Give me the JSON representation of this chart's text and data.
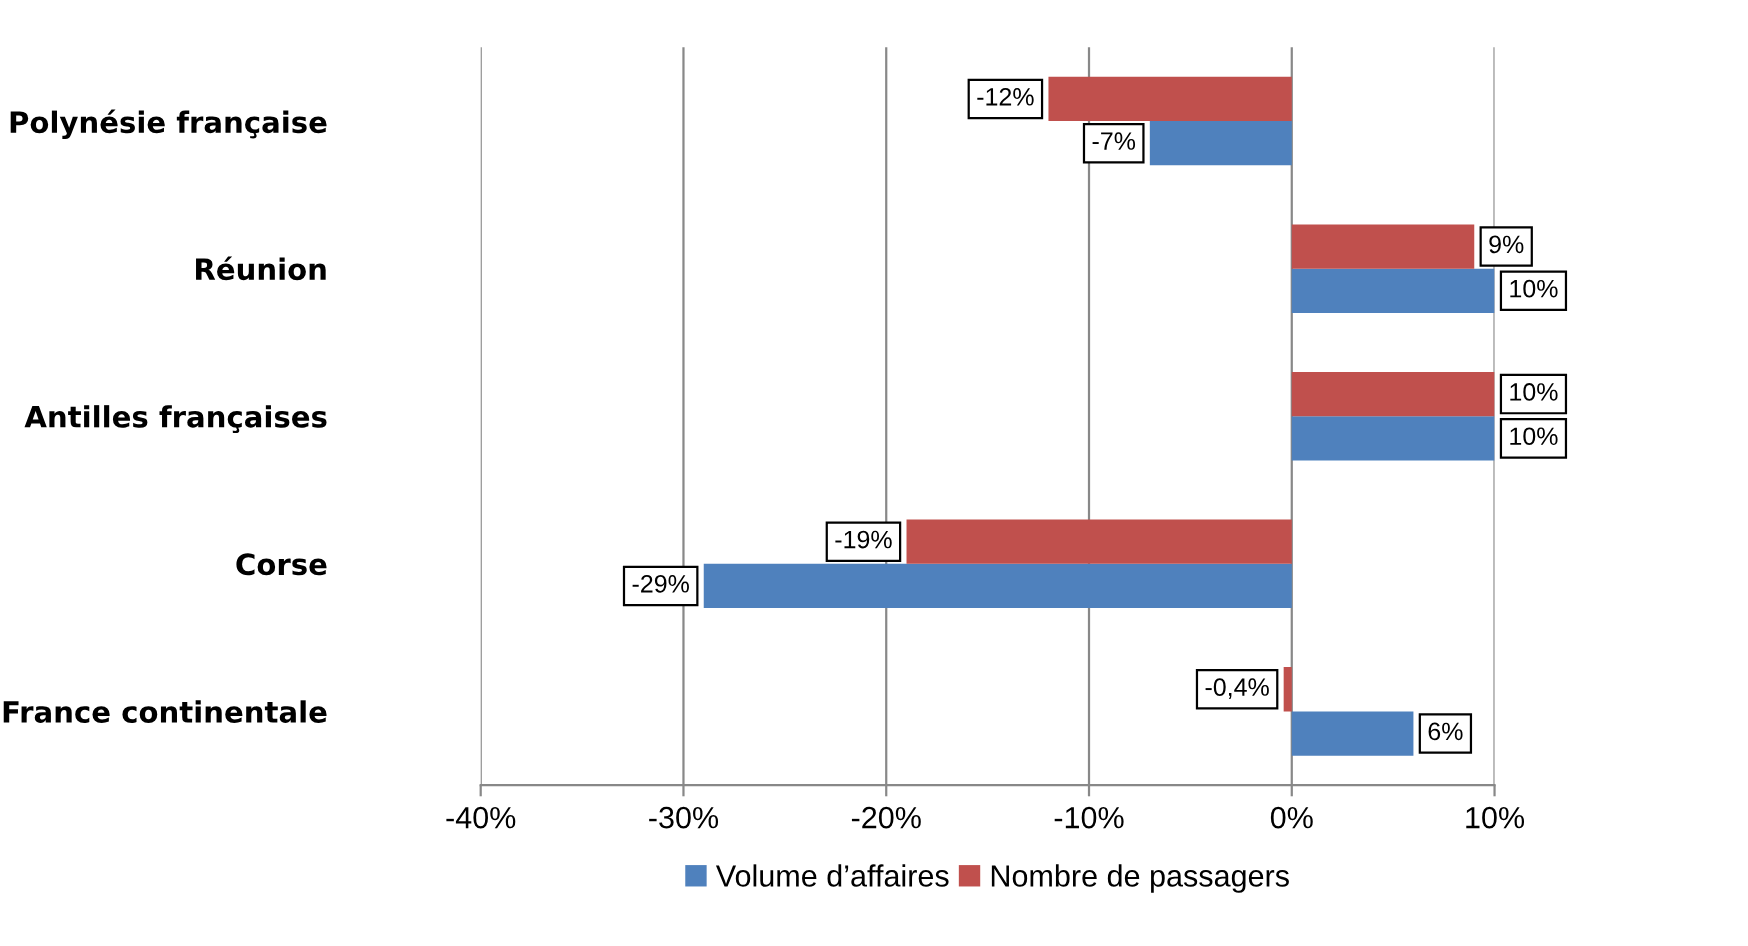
{
  "chart_data": {
    "type": "bar",
    "orientation": "horizontal",
    "categories": [
      "Polynésie française",
      "Réunion",
      "Antilles françaises",
      "Corse",
      "France continentale"
    ],
    "series": [
      {
        "name": "Volume d’affaires",
        "color": "#4f81bd",
        "values": [
          -7,
          10,
          10,
          -29,
          6
        ],
        "value_labels": [
          "-7%",
          "10%",
          "10%",
          "-29%",
          "6%"
        ]
      },
      {
        "name": "Nombre de passagers",
        "color": "#c0504d",
        "values": [
          -12,
          9,
          10,
          -19,
          -0.4
        ],
        "value_labels": [
          "-12%",
          "9%",
          "10%",
          "-19%",
          "-0,4%"
        ]
      }
    ],
    "xlim": [
      -40,
      10
    ],
    "xticks": [
      {
        "value": -40,
        "label": "-40%"
      },
      {
        "value": -30,
        "label": "-30%"
      },
      {
        "value": -20,
        "label": "-20%"
      },
      {
        "value": -10,
        "label": "-10%"
      },
      {
        "value": 0,
        "label": "0%"
      },
      {
        "value": 10,
        "label": "10%"
      }
    ],
    "grid": "x",
    "legend": "bottom"
  }
}
